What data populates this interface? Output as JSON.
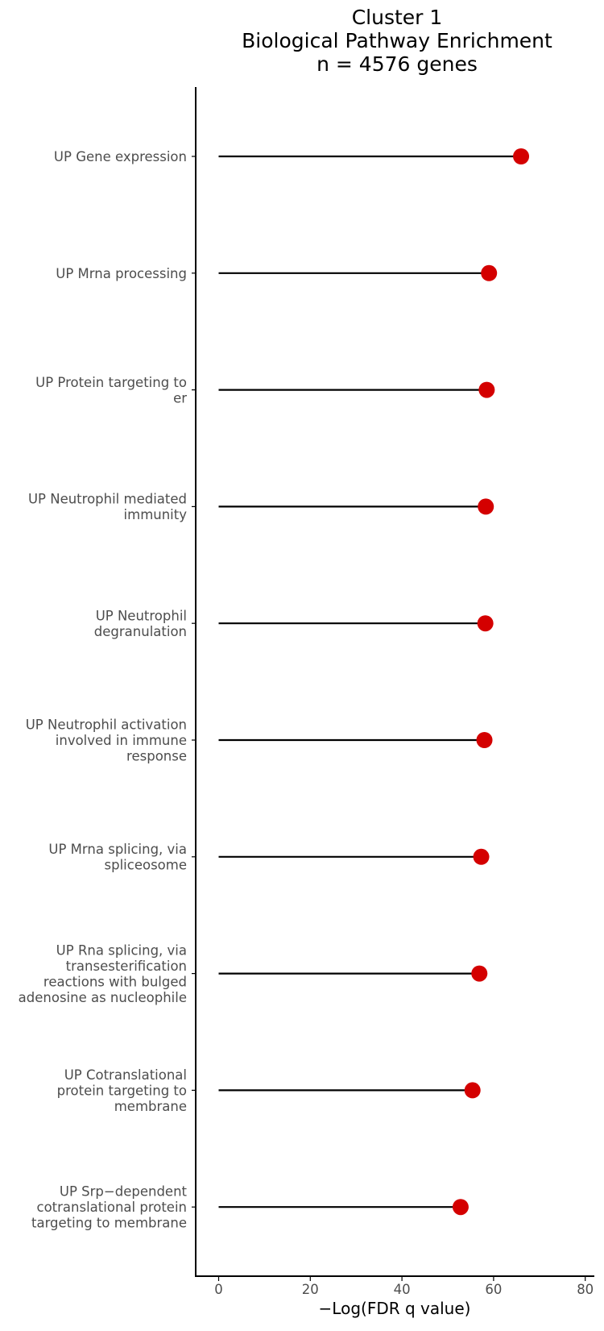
{
  "chart_data": {
    "type": "lollipop",
    "title_lines": [
      "Cluster 1",
      "Biological Pathway Enrichment",
      "n = 4576 genes"
    ],
    "xlabel": "−Log(FDR q value)",
    "ylabel": "",
    "xlim": [
      -5,
      82
    ],
    "x_ticks": [
      "0",
      "20",
      "40",
      "60",
      "80"
    ],
    "grid": false,
    "legend": "none",
    "point_color": "#d40000",
    "stem_color": "#000000",
    "categories": [
      [
        "UP Gene expression"
      ],
      [
        "UP Mrna processing"
      ],
      [
        "UP Protein targeting to",
        "er"
      ],
      [
        "UP Neutrophil mediated",
        "immunity"
      ],
      [
        "UP Neutrophil",
        "degranulation"
      ],
      [
        "UP Neutrophil activation",
        "involved in immune",
        "response"
      ],
      [
        "UP Mrna splicing, via",
        "spliceosome"
      ],
      [
        "UP Rna splicing, via",
        "transesterification",
        "reactions with bulged",
        "adenosine as nucleophile"
      ],
      [
        "UP Cotranslational",
        "protein targeting to",
        "membrane"
      ],
      [
        "UP Srp−dependent",
        "cotranslational protein",
        "targeting to membrane"
      ]
    ],
    "values": [
      66.0,
      59.0,
      58.5,
      58.3,
      58.2,
      58.0,
      57.3,
      56.9,
      55.4,
      52.8
    ]
  }
}
